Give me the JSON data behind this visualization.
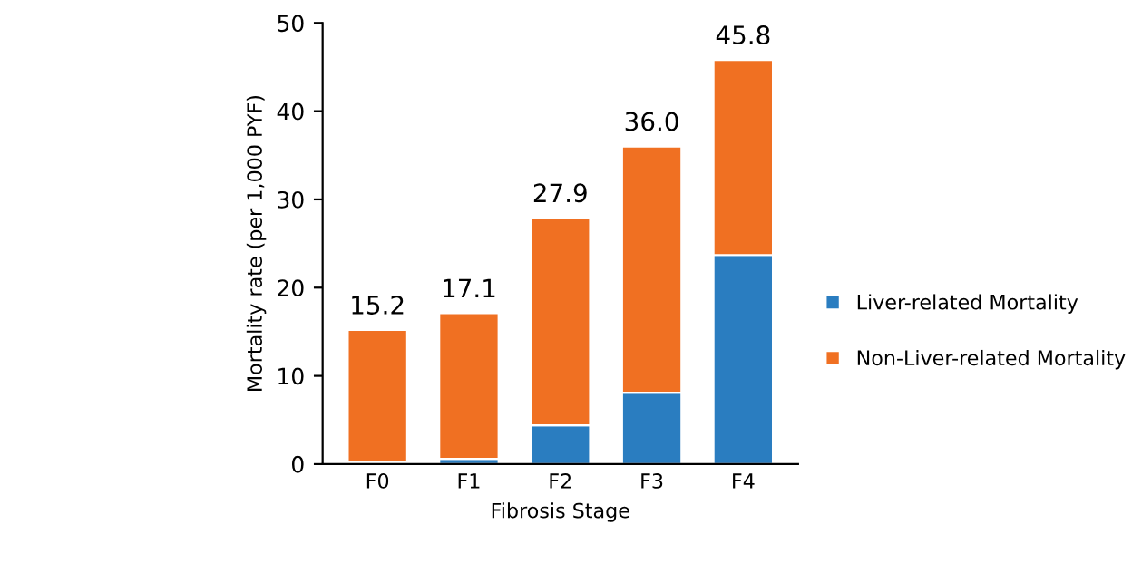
{
  "chart_data": {
    "type": "bar",
    "stacked": true,
    "xlabel": "Fibrosis Stage",
    "ylabel": "Mortality rate (per 1,000 PYF)",
    "categories": [
      "F0",
      "F1",
      "F2",
      "F3",
      "F4"
    ],
    "series": [
      {
        "name": "Liver-related Mortality",
        "color": "#2a7dc0",
        "values": [
          0.2,
          0.6,
          4.4,
          8.1,
          23.7
        ]
      },
      {
        "name": "Non-Liver-related Mortality",
        "color": "#f07022",
        "values": [
          15.0,
          16.5,
          23.5,
          27.9,
          22.1
        ]
      }
    ],
    "totals": [
      "15.2",
      "17.1",
      "27.9",
      "36.0",
      "45.8"
    ],
    "ylim": [
      0,
      50
    ],
    "yticks": [
      0,
      10,
      20,
      30,
      40,
      50
    ],
    "grid": false,
    "legend": "right"
  }
}
